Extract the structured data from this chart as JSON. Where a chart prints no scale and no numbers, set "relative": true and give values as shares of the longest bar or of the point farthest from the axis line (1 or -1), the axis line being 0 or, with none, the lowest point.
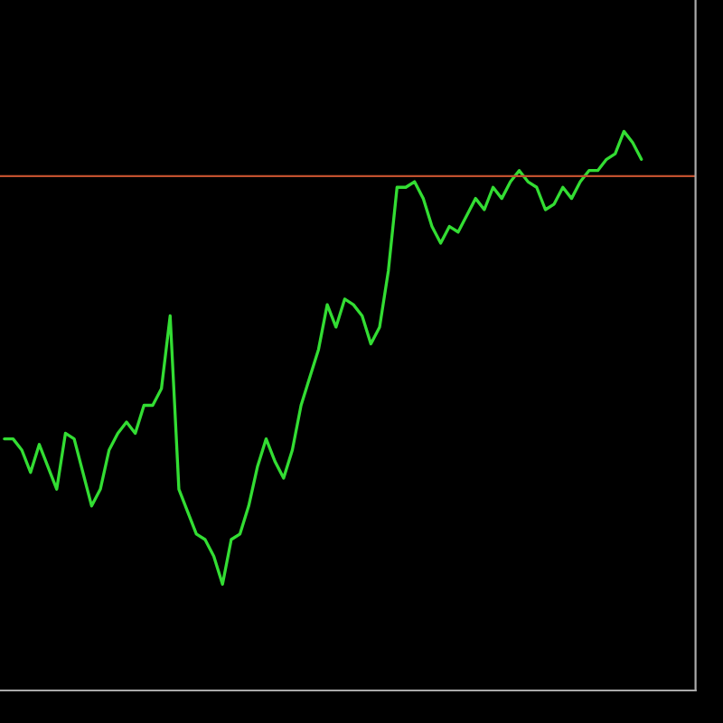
{
  "chart_data": {
    "type": "line",
    "relative": true,
    "categories": [
      null,
      null,
      null,
      null,
      null,
      null,
      null,
      null,
      null,
      null,
      null,
      null,
      null,
      null,
      null,
      null,
      null,
      null,
      null,
      null,
      null,
      null,
      null,
      null,
      null,
      null,
      null,
      null,
      null,
      null,
      null,
      null,
      null,
      null,
      null,
      null,
      null,
      null,
      null,
      null,
      null,
      null,
      null,
      null,
      null,
      null,
      null,
      null,
      null,
      null,
      null,
      null,
      null,
      null,
      null,
      null,
      null,
      null,
      null,
      null,
      null,
      null,
      null,
      null,
      null,
      null,
      null,
      null,
      null,
      null,
      null,
      null,
      null,
      null
    ],
    "series": [
      {
        "color": "#33dd33",
        "values": [
          0.45,
          0.45,
          0.43,
          0.39,
          0.44,
          0.4,
          0.36,
          0.46,
          0.45,
          0.39,
          0.33,
          0.36,
          0.43,
          0.46,
          0.48,
          0.46,
          0.51,
          0.51,
          0.54,
          0.67,
          0.36,
          0.32,
          0.28,
          0.27,
          0.24,
          0.19,
          0.27,
          0.28,
          0.33,
          0.4,
          0.45,
          0.41,
          0.38,
          0.43,
          0.51,
          0.56,
          0.61,
          0.69,
          0.65,
          0.7,
          0.69,
          0.67,
          0.62,
          0.65,
          0.75,
          0.9,
          0.9,
          0.91,
          0.88,
          0.83,
          0.8,
          0.83,
          0.82,
          0.85,
          0.88,
          0.86,
          0.9,
          0.88,
          0.91,
          0.93,
          0.91,
          0.9,
          0.86,
          0.87,
          0.9,
          0.88,
          0.91,
          0.93,
          0.93,
          0.95,
          0.96,
          1,
          0.98,
          0.95
        ]
      }
    ],
    "ref_lines": [
      {
        "axis": "y",
        "value": 0.92,
        "color": "#c0502e"
      }
    ]
  }
}
